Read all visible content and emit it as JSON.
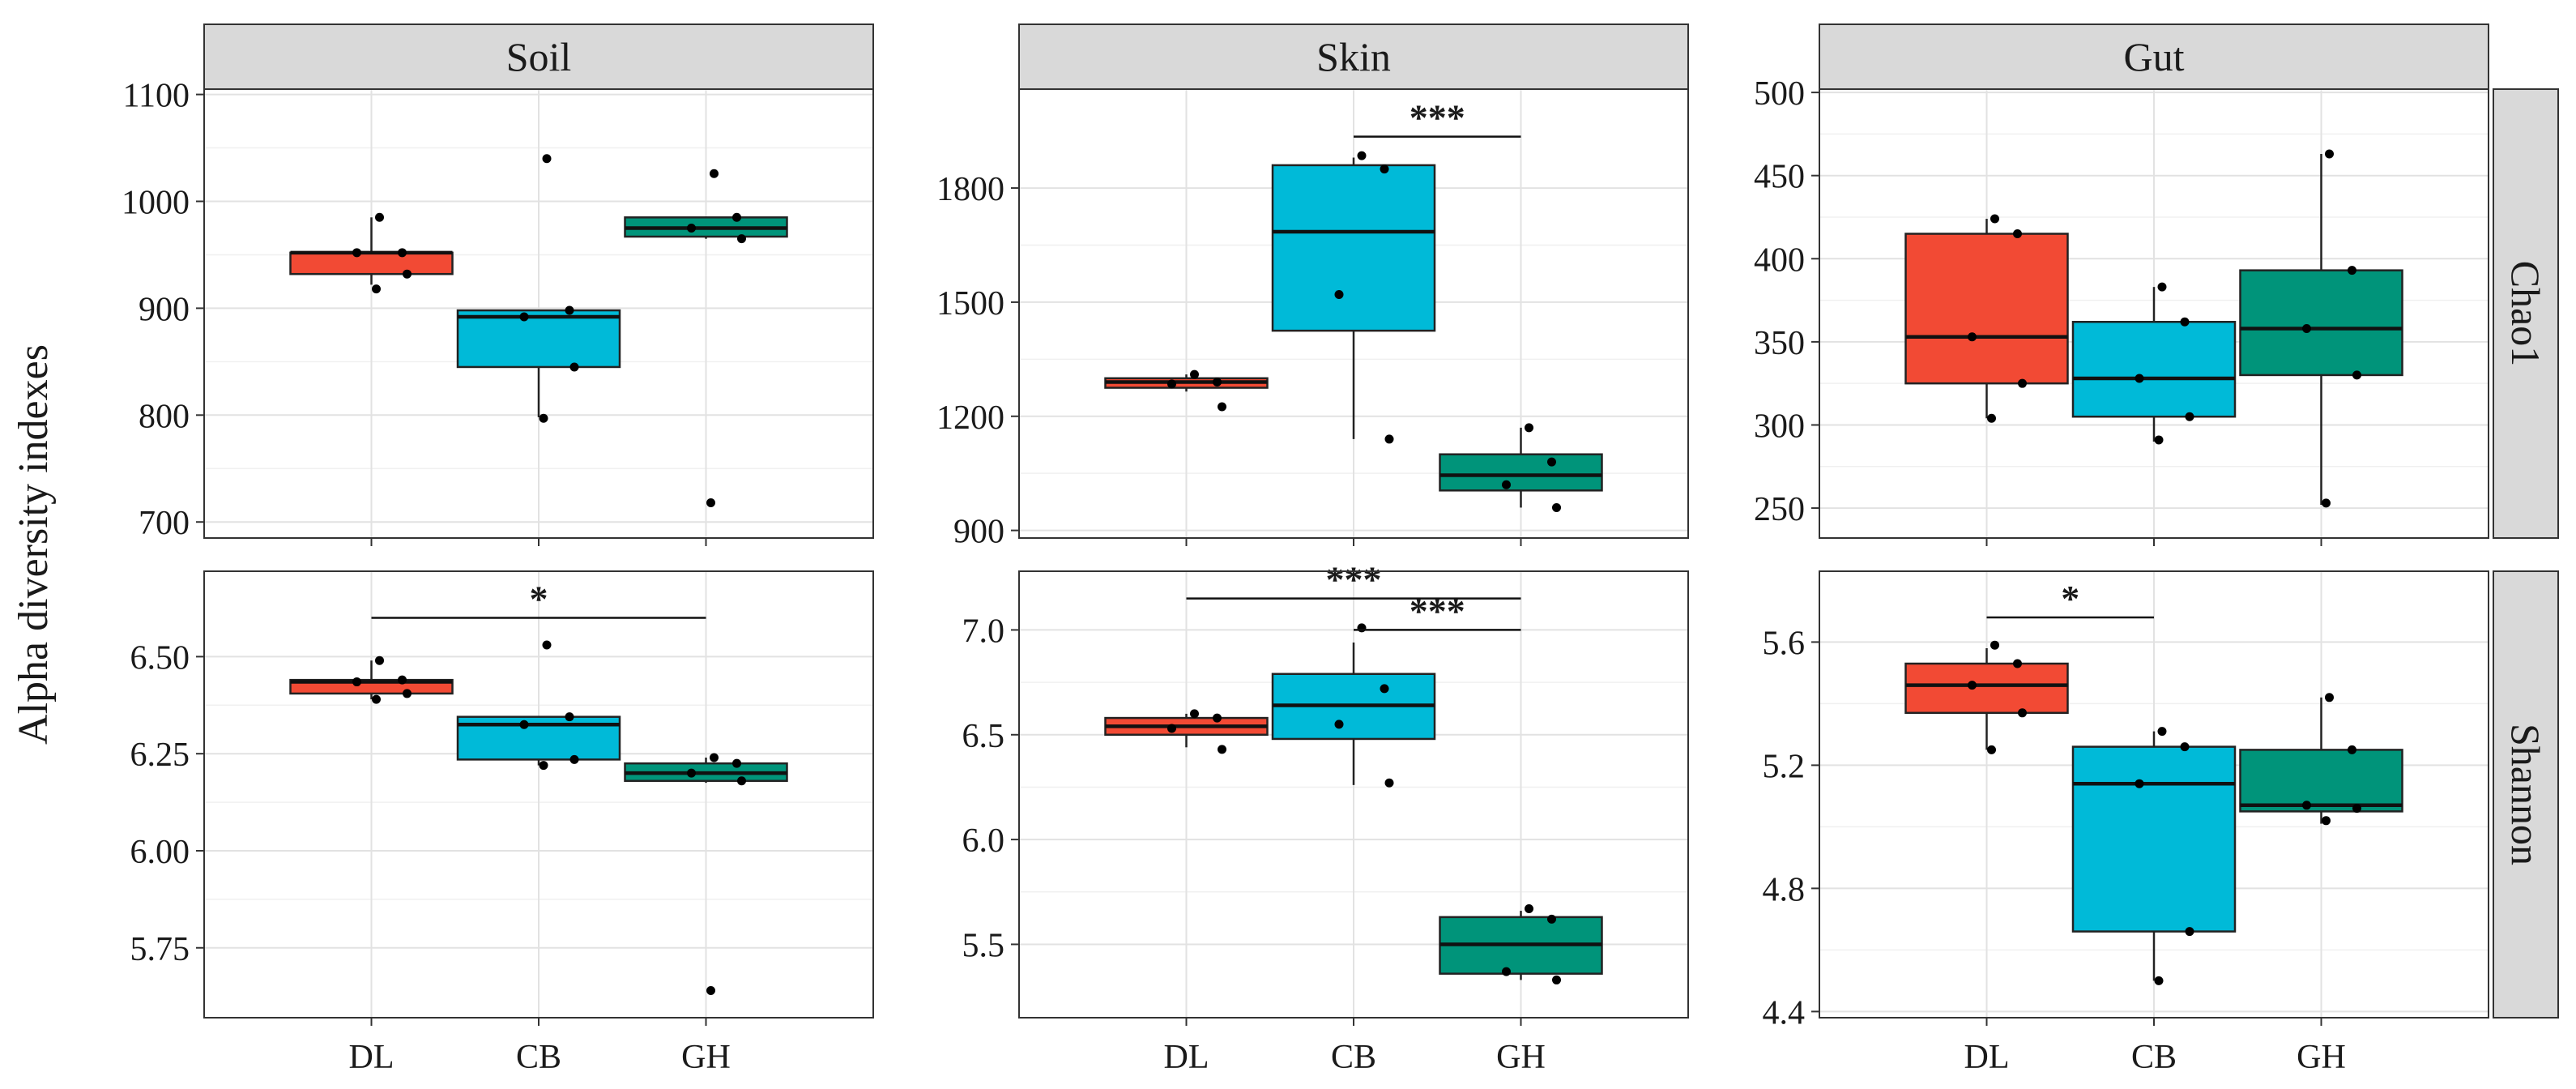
{
  "chart_data": {
    "type": "boxplot",
    "ylabel": "Alpha diversity indexes",
    "xlabel": "",
    "categories": [
      "DL",
      "CB",
      "GH"
    ],
    "colors": {
      "DL": "#f24a34",
      "CB": "#00bad8",
      "GH": "#00947a"
    },
    "column_titles": [
      "Soil",
      "Skin",
      "Gut"
    ],
    "row_titles": [
      "Chao1",
      "Shannon"
    ],
    "grid": true,
    "panels": [
      {
        "column": "Soil",
        "row": "Chao1",
        "yticks": [
          700,
          800,
          900,
          1000,
          1100
        ],
        "ytick_labels": [
          "700",
          "800",
          "900",
          "1000",
          "1100"
        ],
        "ylim": [
          685,
          1105
        ],
        "boxes": [
          {
            "group": "DL",
            "q1": 932,
            "median": 952,
            "q3": 952,
            "whisker_low": 922,
            "whisker_high": 985,
            "points": [
              985,
              952,
              952,
              932,
              918
            ]
          },
          {
            "group": "CB",
            "q1": 845,
            "median": 892,
            "q3": 898,
            "whisker_low": 798,
            "whisker_high": 898,
            "points": [
              1040,
              898,
              892,
              845,
              797
            ]
          },
          {
            "group": "GH",
            "q1": 967,
            "median": 975,
            "q3": 985,
            "whisker_low": 965,
            "whisker_high": 985,
            "points": [
              1026,
              985,
              975,
              965,
              718
            ]
          }
        ],
        "significance": []
      },
      {
        "column": "Skin",
        "row": "Chao1",
        "yticks": [
          900,
          1200,
          1500,
          1800
        ],
        "ytick_labels": [
          "900",
          "1200",
          "1500",
          "1800"
        ],
        "ylim": [
          880,
          2060
        ],
        "boxes": [
          {
            "group": "DL",
            "q1": 1275,
            "median": 1290,
            "q3": 1300,
            "whisker_low": 1265,
            "whisker_high": 1310,
            "points": [
              1310,
              1290,
              1285,
              1225
            ]
          },
          {
            "group": "CB",
            "q1": 1425,
            "median": 1685,
            "q3": 1860,
            "whisker_low": 1140,
            "whisker_high": 1880,
            "points": [
              1885,
              1850,
              1520,
              1140
            ]
          },
          {
            "group": "GH",
            "q1": 1005,
            "median": 1045,
            "q3": 1100,
            "whisker_low": 960,
            "whisker_high": 1170,
            "points": [
              1170,
              1080,
              1020,
              960
            ]
          }
        ],
        "significance": [
          {
            "from": "CB",
            "to": "GH",
            "label": "***",
            "y": 1935
          }
        ]
      },
      {
        "column": "Gut",
        "row": "Chao1",
        "yticks": [
          250,
          300,
          350,
          400,
          450,
          500
        ],
        "ytick_labels": [
          "250",
          "300",
          "350",
          "400",
          "450",
          "500"
        ],
        "ylim": [
          232,
          502
        ],
        "boxes": [
          {
            "group": "DL",
            "q1": 325,
            "median": 353,
            "q3": 415,
            "whisker_low": 304,
            "whisker_high": 424,
            "points": [
              424,
              415,
              353,
              325,
              304
            ]
          },
          {
            "group": "CB",
            "q1": 305,
            "median": 328,
            "q3": 362,
            "whisker_low": 290,
            "whisker_high": 383,
            "points": [
              383,
              362,
              328,
              305,
              291
            ]
          },
          {
            "group": "GH",
            "q1": 330,
            "median": 358,
            "q3": 393,
            "whisker_low": 252,
            "whisker_high": 463,
            "points": [
              463,
              393,
              358,
              330,
              253
            ]
          }
        ],
        "significance": []
      },
      {
        "column": "Soil",
        "row": "Shannon",
        "yticks": [
          5.75,
          6.0,
          6.25,
          6.5
        ],
        "ytick_labels": [
          "5.75",
          "6.00",
          "6.25",
          "6.50"
        ],
        "ylim": [
          5.57,
          6.72
        ],
        "boxes": [
          {
            "group": "DL",
            "q1": 6.405,
            "median": 6.435,
            "q3": 6.44,
            "whisker_low": 6.39,
            "whisker_high": 6.49,
            "points": [
              6.49,
              6.44,
              6.435,
              6.405,
              6.39
            ]
          },
          {
            "group": "CB",
            "q1": 6.235,
            "median": 6.325,
            "q3": 6.345,
            "whisker_low": 6.22,
            "whisker_high": 6.345,
            "points": [
              6.53,
              6.345,
              6.325,
              6.235,
              6.22
            ]
          },
          {
            "group": "GH",
            "q1": 6.18,
            "median": 6.2,
            "q3": 6.225,
            "whisker_low": 6.175,
            "whisker_high": 6.24,
            "points": [
              6.24,
              6.225,
              6.2,
              6.18,
              5.64
            ]
          }
        ],
        "significance": [
          {
            "from": "DL",
            "to": "GH",
            "label": "*",
            "y": 6.6
          }
        ]
      },
      {
        "column": "Skin",
        "row": "Shannon",
        "yticks": [
          5.5,
          6.0,
          6.5,
          7.0
        ],
        "ytick_labels": [
          "5.5",
          "6.0",
          "6.5",
          "7.0"
        ],
        "ylim": [
          5.15,
          7.28
        ],
        "boxes": [
          {
            "group": "DL",
            "q1": 6.5,
            "median": 6.54,
            "q3": 6.58,
            "whisker_low": 6.44,
            "whisker_high": 6.6,
            "points": [
              6.6,
              6.58,
              6.53,
              6.43
            ]
          },
          {
            "group": "CB",
            "q1": 6.48,
            "median": 6.64,
            "q3": 6.79,
            "whisker_low": 6.26,
            "whisker_high": 6.94,
            "points": [
              7.01,
              6.72,
              6.55,
              6.27
            ]
          },
          {
            "group": "GH",
            "q1": 5.36,
            "median": 5.5,
            "q3": 5.63,
            "whisker_low": 5.33,
            "whisker_high": 5.66,
            "points": [
              5.67,
              5.62,
              5.37,
              5.33
            ]
          }
        ],
        "significance": [
          {
            "from": "DL",
            "to": "GH",
            "label": "***",
            "y": 7.15
          },
          {
            "from": "CB",
            "to": "GH",
            "label": "***",
            "y": 7.0
          }
        ]
      },
      {
        "column": "Gut",
        "row": "Shannon",
        "yticks": [
          4.4,
          4.8,
          5.2,
          5.6
        ],
        "ytick_labels": [
          "4.4",
          "4.8",
          "5.2",
          "5.6"
        ],
        "ylim": [
          4.38,
          5.83
        ],
        "boxes": [
          {
            "group": "DL",
            "q1": 5.37,
            "median": 5.46,
            "q3": 5.53,
            "whisker_low": 5.25,
            "whisker_high": 5.58,
            "points": [
              5.59,
              5.53,
              5.46,
              5.37,
              5.25
            ]
          },
          {
            "group": "CB",
            "q1": 4.66,
            "median": 5.14,
            "q3": 5.26,
            "whisker_low": 4.5,
            "whisker_high": 5.31,
            "points": [
              5.31,
              5.26,
              5.14,
              4.66,
              4.5
            ]
          },
          {
            "group": "GH",
            "q1": 5.05,
            "median": 5.07,
            "q3": 5.25,
            "whisker_low": 5.01,
            "whisker_high": 5.42,
            "points": [
              5.42,
              5.25,
              5.07,
              5.06,
              5.02
            ]
          }
        ],
        "significance": [
          {
            "from": "DL",
            "to": "CB",
            "label": "*",
            "y": 5.68
          }
        ]
      }
    ]
  }
}
